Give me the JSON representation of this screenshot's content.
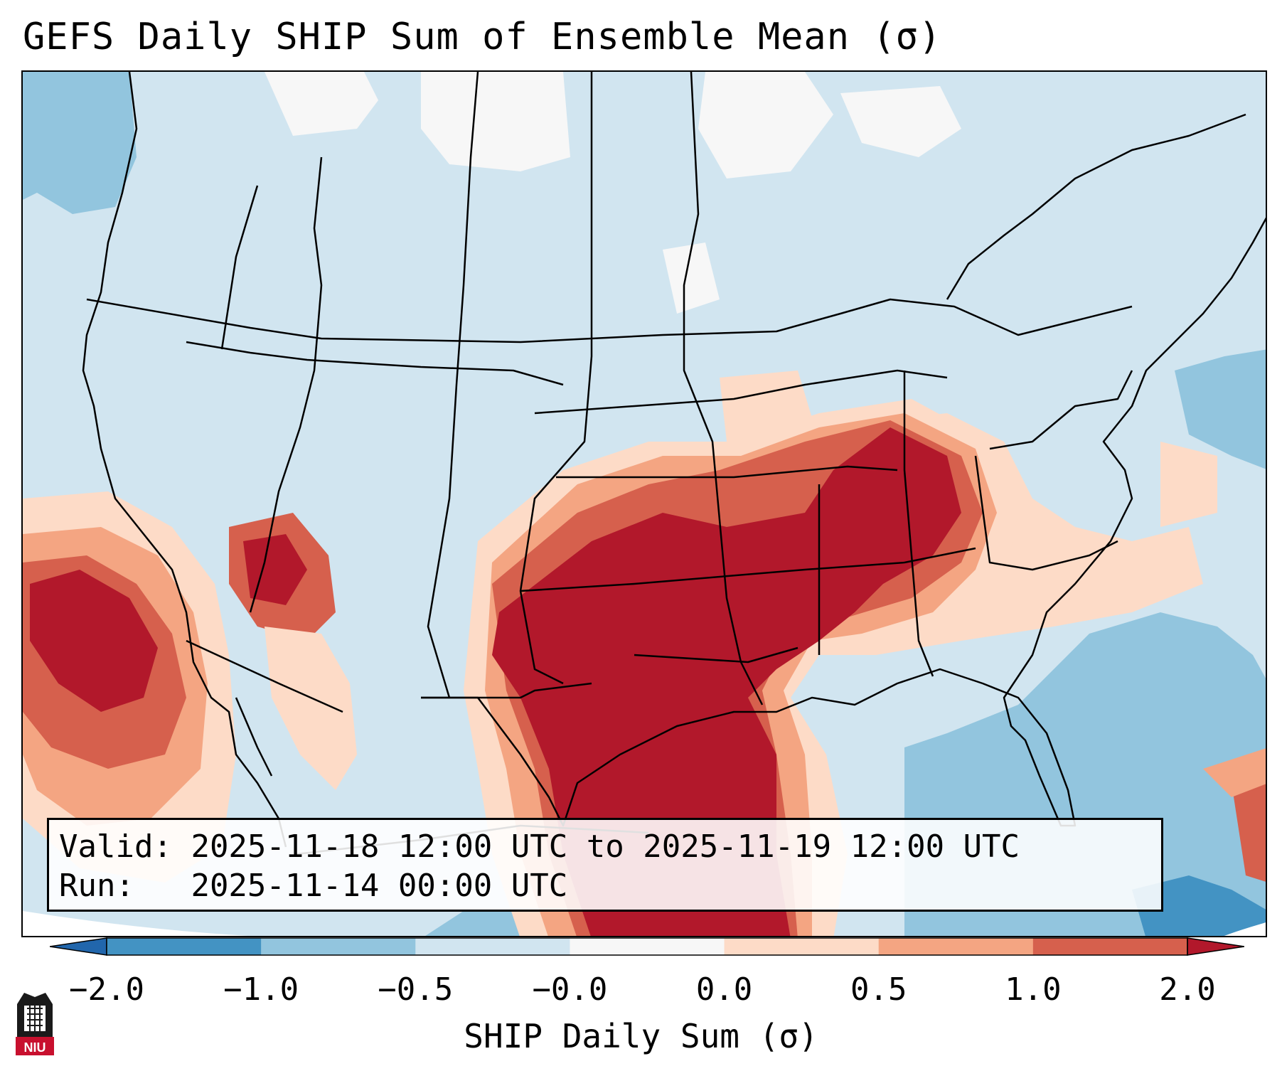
{
  "title": "GEFS Daily SHIP Sum of Ensemble Mean (σ)",
  "valid_label": "Valid:",
  "valid_value": "2025-11-18 12:00 UTC to 2025-11-19 12:00 UTC",
  "run_label": "Run:",
  "run_value": "2025-11-14 00:00 UTC",
  "colorbar": {
    "label": "SHIP Daily Sum (σ)",
    "ticks": [
      "−2.0",
      "−1.0",
      "−0.5",
      "−0.0",
      "0.0",
      "0.5",
      "1.0",
      "2.0"
    ],
    "bins": [
      {
        "range": "below -2.0",
        "color": "#2166ac"
      },
      {
        "range": "-2.0 to -1.0",
        "color": "#4393c3"
      },
      {
        "range": "-1.0 to -0.5",
        "color": "#92c5de"
      },
      {
        "range": "-0.5 to 0.0",
        "color": "#d1e5f0"
      },
      {
        "range": "0.0",
        "color": "#f7f7f7"
      },
      {
        "range": "0.0 to 0.5",
        "color": "#fddbc7"
      },
      {
        "range": "0.5 to 1.0",
        "color": "#f4a582"
      },
      {
        "range": "1.0 to 2.0",
        "color": "#d6604d"
      },
      {
        "range": "above 2.0",
        "color": "#b2182b"
      }
    ]
  },
  "map": {
    "region": "Contiguous United States",
    "background_color": "#d1e5f0",
    "max_anomaly_color": "#b2182b"
  },
  "logo_text": "NIU"
}
